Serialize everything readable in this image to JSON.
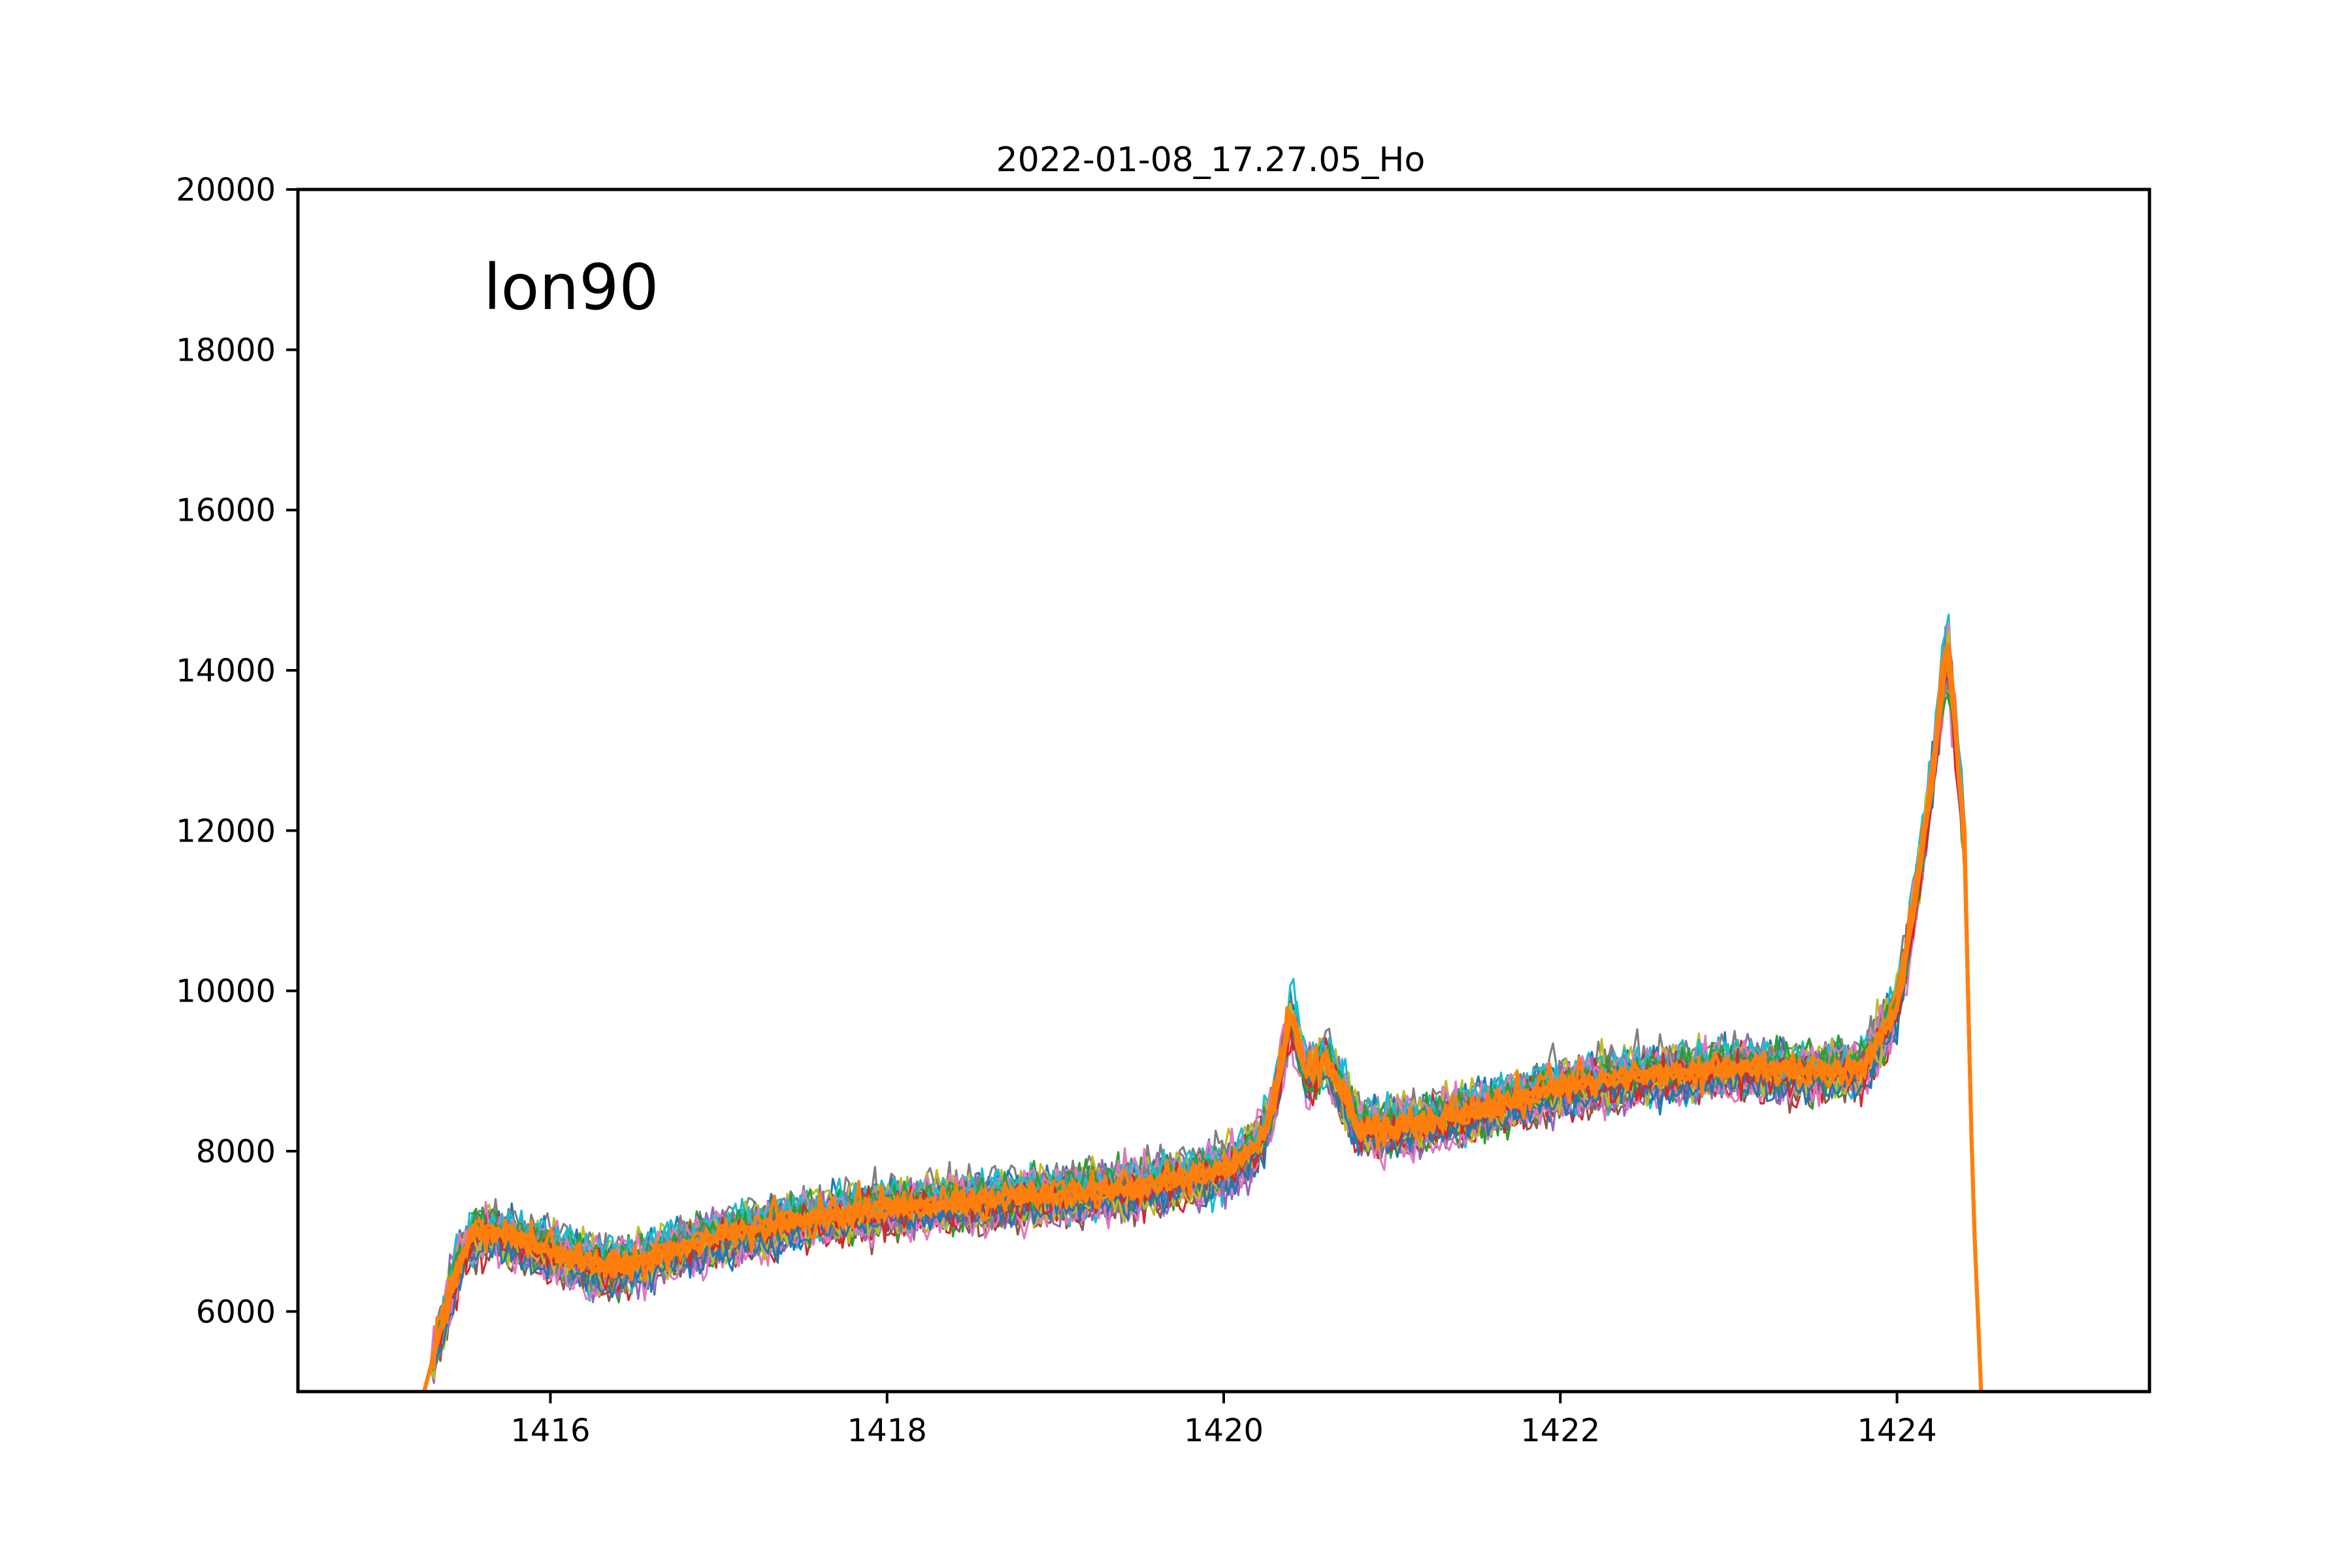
{
  "chart_data": {
    "type": "line",
    "title": "2022-01-08_17.27.05_Ho",
    "xlabel": "",
    "ylabel": "",
    "xlim": [
      1414.5,
      1425.5
    ],
    "ylim": [
      5000,
      20000
    ],
    "x_ticks": [
      1416,
      1418,
      1420,
      1422,
      1424
    ],
    "y_ticks": [
      6000,
      8000,
      10000,
      12000,
      14000,
      16000,
      18000,
      20000
    ],
    "grid": false,
    "legend": "none",
    "annotation": "lon90",
    "series_count_approx": 40,
    "envelope_spread": 550,
    "series_colors": [
      "#1f77b4",
      "#2ca02c",
      "#d62728",
      "#9467bd",
      "#8c564b",
      "#e377c2",
      "#7f7f7f",
      "#bcbd22",
      "#17becf",
      "#ff7f0e"
    ],
    "mean_profile": {
      "x": [
        1415.25,
        1415.35,
        1415.45,
        1415.55,
        1415.7,
        1416.0,
        1416.3,
        1416.5,
        1417.0,
        1417.5,
        1418.0,
        1418.5,
        1419.0,
        1419.5,
        1420.0,
        1420.2,
        1420.3,
        1420.4,
        1420.5,
        1420.6,
        1420.7,
        1420.8,
        1421.0,
        1421.5,
        1422.0,
        1422.5,
        1423.0,
        1423.5,
        1423.8,
        1424.0,
        1424.1,
        1424.2,
        1424.3,
        1424.4,
        1424.45,
        1424.5
      ],
      "y": [
        5000,
        5800,
        6600,
        7000,
        7000,
        6750,
        6550,
        6600,
        6950,
        7150,
        7300,
        7380,
        7460,
        7560,
        7750,
        8050,
        8600,
        9700,
        8900,
        9150,
        8750,
        8300,
        8300,
        8500,
        8800,
        8950,
        9050,
        9000,
        9050,
        9800,
        11000,
        12500,
        14300,
        12000,
        7500,
        5000
      ]
    },
    "peaks": [
      {
        "x": 1420.4,
        "y": 9700
      },
      {
        "x": 1424.3,
        "y": 14300
      }
    ]
  }
}
